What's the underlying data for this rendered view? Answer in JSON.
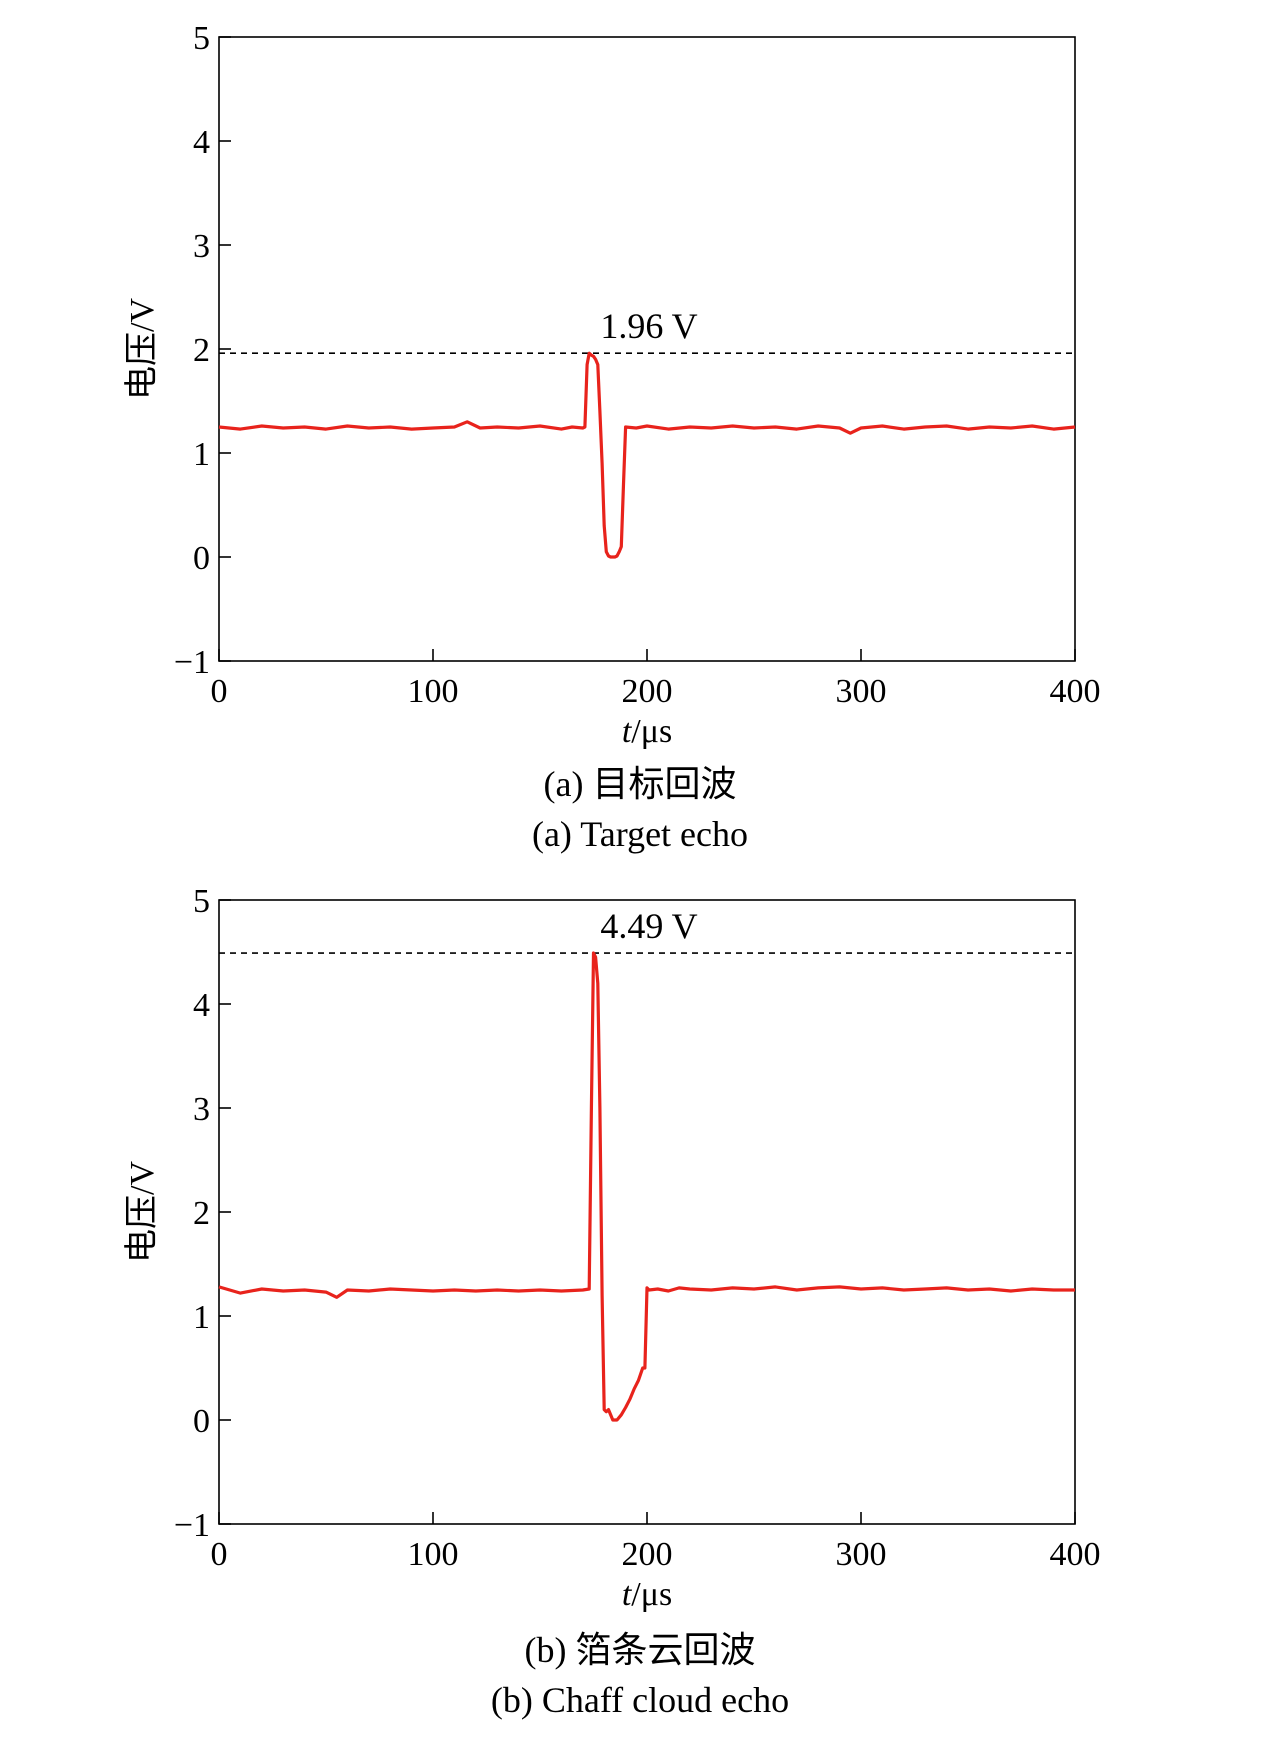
{
  "chart_data": [
    {
      "type": "line",
      "caption_cn": "(a) 目标回波",
      "caption_en": "(a) Target echo",
      "xlabel_var": "t",
      "xlabel_unit": "/μs",
      "ylabel": "电压/V",
      "xlim": [
        0,
        400
      ],
      "ylim": [
        -1,
        5
      ],
      "xticks": [
        "0",
        "100",
        "200",
        "300",
        "400"
      ],
      "yticks": [
        "−1",
        "0",
        "1",
        "2",
        "3",
        "4",
        "5"
      ],
      "grid": false,
      "reference_line": {
        "value": 1.96,
        "label": "1.96 V",
        "style": "dashed"
      },
      "series": [
        {
          "color": "#e8231c",
          "x": [
            0,
            10,
            20,
            30,
            40,
            50,
            60,
            70,
            80,
            90,
            100,
            110,
            116,
            122,
            130,
            140,
            150,
            160,
            165,
            170,
            171,
            172,
            173,
            174,
            175,
            176,
            177,
            178,
            179,
            180,
            181,
            182,
            183,
            184,
            185,
            186,
            187,
            188,
            189,
            190,
            195,
            200,
            210,
            220,
            230,
            240,
            250,
            260,
            270,
            280,
            290,
            295,
            300,
            310,
            320,
            330,
            340,
            350,
            360,
            370,
            380,
            390,
            400
          ],
          "y": [
            1.25,
            1.23,
            1.26,
            1.24,
            1.25,
            1.23,
            1.26,
            1.24,
            1.25,
            1.23,
            1.24,
            1.25,
            1.3,
            1.24,
            1.25,
            1.24,
            1.26,
            1.23,
            1.25,
            1.24,
            1.25,
            1.85,
            1.96,
            1.94,
            1.93,
            1.9,
            1.85,
            1.4,
            0.9,
            0.3,
            0.05,
            0.01,
            0.0,
            0.0,
            0.0,
            0.01,
            0.05,
            0.1,
            0.7,
            1.25,
            1.24,
            1.26,
            1.23,
            1.25,
            1.24,
            1.26,
            1.24,
            1.25,
            1.23,
            1.26,
            1.24,
            1.19,
            1.24,
            1.26,
            1.23,
            1.25,
            1.26,
            1.23,
            1.25,
            1.24,
            1.26,
            1.23,
            1.25
          ]
        }
      ]
    },
    {
      "type": "line",
      "caption_cn": "(b) 箔条云回波",
      "caption_en": "(b) Chaff cloud echo",
      "xlabel_var": "t",
      "xlabel_unit": "/μs",
      "ylabel": "电压/V",
      "xlim": [
        0,
        400
      ],
      "ylim": [
        -1,
        5
      ],
      "xticks": [
        "0",
        "100",
        "200",
        "300",
        "400"
      ],
      "yticks": [
        "−1",
        "0",
        "1",
        "2",
        "3",
        "4",
        "5"
      ],
      "grid": false,
      "reference_line": {
        "value": 4.49,
        "label": "4.49 V",
        "style": "dashed"
      },
      "series": [
        {
          "color": "#e8231c",
          "x": [
            0,
            10,
            20,
            30,
            40,
            50,
            55,
            60,
            70,
            80,
            90,
            100,
            110,
            120,
            130,
            140,
            150,
            160,
            170,
            173,
            174,
            175,
            176,
            177,
            178,
            179,
            180,
            181,
            182,
            184,
            186,
            188,
            190,
            192,
            194,
            196,
            198,
            199,
            200,
            201,
            205,
            210,
            215,
            220,
            230,
            240,
            250,
            260,
            270,
            280,
            290,
            300,
            310,
            320,
            330,
            340,
            350,
            360,
            370,
            380,
            390,
            400
          ],
          "y": [
            1.28,
            1.22,
            1.26,
            1.24,
            1.25,
            1.23,
            1.18,
            1.25,
            1.24,
            1.26,
            1.25,
            1.24,
            1.25,
            1.24,
            1.25,
            1.24,
            1.25,
            1.24,
            1.25,
            1.26,
            3.0,
            4.49,
            4.45,
            4.2,
            3.0,
            1.2,
            0.1,
            0.08,
            0.1,
            0.0,
            0.0,
            0.05,
            0.12,
            0.2,
            0.3,
            0.38,
            0.5,
            0.5,
            1.27,
            1.25,
            1.26,
            1.24,
            1.27,
            1.26,
            1.25,
            1.27,
            1.26,
            1.28,
            1.25,
            1.27,
            1.28,
            1.26,
            1.27,
            1.25,
            1.26,
            1.27,
            1.25,
            1.26,
            1.24,
            1.26,
            1.25,
            1.25
          ]
        }
      ]
    }
  ]
}
